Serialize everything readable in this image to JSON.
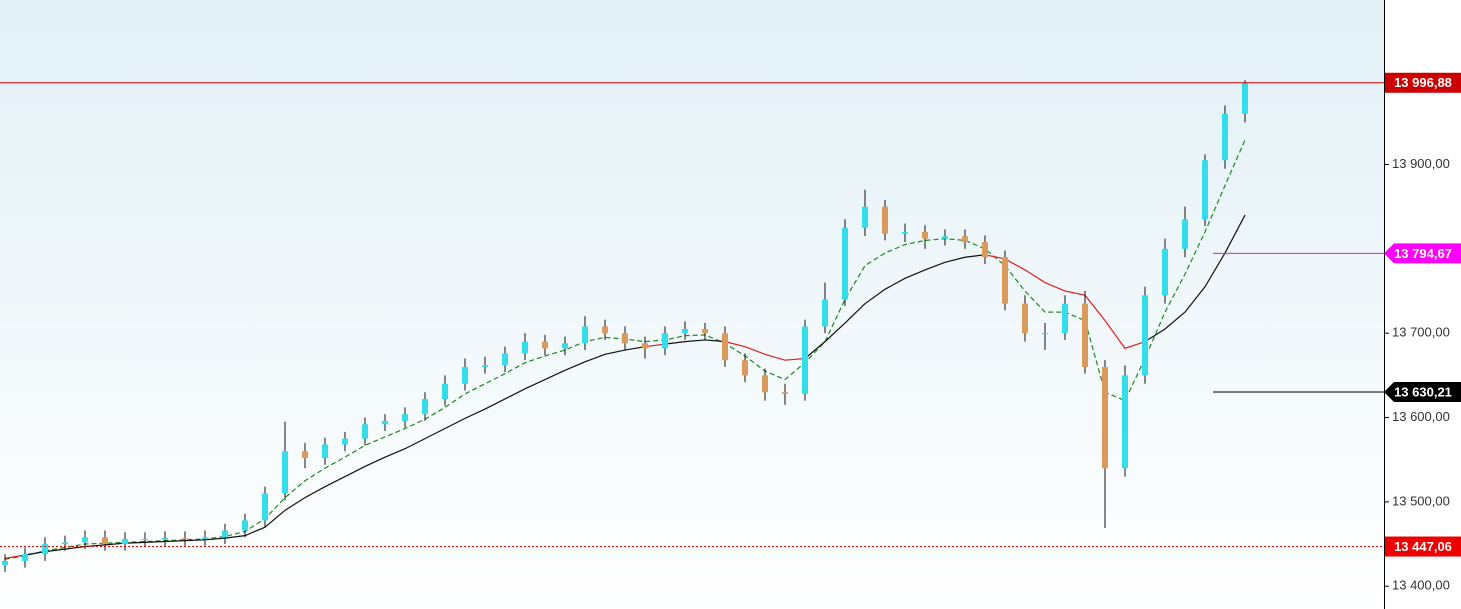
{
  "chart_data": {
    "type": "candlestick",
    "ylim": [
      13373,
      14095
    ],
    "yticks": [
      {
        "value": 13400,
        "label": "13 400,00"
      },
      {
        "value": 13500,
        "label": "13 500,00"
      },
      {
        "value": 13600,
        "label": "13 600,00"
      },
      {
        "value": 13700,
        "label": "13 700,00"
      },
      {
        "value": 13900,
        "label": "13 900,00"
      }
    ],
    "bull_color": "#33dde9",
    "bear_color": "#d99a5b",
    "wick_color": "#111111",
    "categories": [
      null,
      null,
      null,
      null,
      null,
      null,
      null,
      null,
      null,
      null,
      null,
      null,
      null,
      null,
      null,
      null,
      null,
      null,
      null,
      null,
      null,
      null,
      null,
      null,
      null,
      null,
      null,
      null,
      null,
      null,
      null,
      null,
      null,
      null,
      null,
      null,
      null,
      null,
      null,
      null,
      null,
      null,
      null,
      null,
      null,
      null,
      null,
      null,
      null,
      null,
      null,
      null,
      null,
      null,
      null,
      null,
      null,
      null,
      null,
      null,
      null,
      null,
      null
    ],
    "open": [
      13425,
      13430,
      13438,
      13450,
      13452,
      13458,
      13450,
      13456,
      13455,
      13457,
      13456,
      13458,
      13466,
      13478,
      13510,
      13560,
      13552,
      13568,
      13575,
      13592,
      13596,
      13604,
      13622,
      13640,
      13660,
      13662,
      13676,
      13690,
      13682,
      13688,
      13708,
      13700,
      13688,
      13682,
      13700,
      13705,
      13700,
      13668,
      13650,
      13630,
      13628,
      13708,
      13740,
      13825,
      13850,
      13818,
      13820,
      13812,
      13815,
      13808,
      13790,
      13735,
      13700,
      13700,
      13735,
      13660,
      13540,
      13650,
      13745,
      13800,
      13835,
      13905,
      13960
    ],
    "high": [
      13438,
      13446,
      13458,
      13460,
      13466,
      13466,
      13464,
      13464,
      13465,
      13465,
      13466,
      13474,
      13486,
      13518,
      13595,
      13570,
      13576,
      13583,
      13600,
      13604,
      13612,
      13630,
      13650,
      13670,
      13672,
      13684,
      13700,
      13698,
      13696,
      13720,
      13716,
      13708,
      13696,
      13708,
      13714,
      13712,
      13708,
      13676,
      13658,
      13640,
      13716,
      13760,
      13835,
      13870,
      13858,
      13830,
      13828,
      13823,
      13823,
      13816,
      13798,
      13745,
      13712,
      13745,
      13750,
      13668,
      13662,
      13755,
      13812,
      13850,
      13912,
      13970,
      14000
    ],
    "low": [
      13417,
      13422,
      13430,
      13442,
      13444,
      13442,
      13442,
      13447,
      13447,
      13448,
      13448,
      13450,
      13458,
      13470,
      13502,
      13540,
      13544,
      13560,
      13567,
      13584,
      13588,
      13596,
      13614,
      13632,
      13652,
      13654,
      13668,
      13674,
      13674,
      13680,
      13692,
      13680,
      13670,
      13674,
      13692,
      13692,
      13660,
      13642,
      13620,
      13615,
      13620,
      13700,
      13732,
      13815,
      13810,
      13808,
      13800,
      13804,
      13800,
      13782,
      13727,
      13690,
      13680,
      13692,
      13652,
      13469,
      13530,
      13640,
      13735,
      13790,
      13827,
      13895,
      13950
    ],
    "close": [
      13430,
      13438,
      13450,
      13452,
      13458,
      13450,
      13456,
      13455,
      13457,
      13456,
      13458,
      13466,
      13478,
      13510,
      13560,
      13552,
      13568,
      13575,
      13592,
      13596,
      13604,
      13622,
      13640,
      13660,
      13662,
      13676,
      13690,
      13682,
      13688,
      13708,
      13700,
      13688,
      13682,
      13700,
      13705,
      13700,
      13668,
      13650,
      13630,
      13628,
      13708,
      13740,
      13825,
      13850,
      13818,
      13820,
      13812,
      13815,
      13808,
      13790,
      13735,
      13700,
      13700,
      13735,
      13660,
      13540,
      13650,
      13745,
      13800,
      13835,
      13905,
      13960,
      13997
    ],
    "lines": [
      {
        "color": "#1a8a1a",
        "dash": true,
        "values": [
          13432,
          13436,
          13442,
          13446,
          13450,
          13451,
          13452,
          13453,
          13454,
          13455,
          13456,
          13459,
          13465,
          13480,
          13505,
          13525,
          13540,
          13553,
          13567,
          13577,
          13587,
          13598,
          13612,
          13628,
          13640,
          13652,
          13665,
          13673,
          13680,
          13690,
          13695,
          13693,
          13690,
          13692,
          13697,
          13698,
          13688,
          13673,
          13655,
          13645,
          13665,
          13690,
          13740,
          13780,
          13795,
          13805,
          13810,
          13812,
          13810,
          13800,
          13780,
          13750,
          13725,
          13725,
          13715,
          13630,
          13620,
          13670,
          13725,
          13770,
          13820,
          13875,
          13929
        ]
      },
      {
        "color": "#111111",
        "below_color": "#e02020",
        "dash": false,
        "values": [
          13433,
          13437,
          13441,
          13444,
          13447,
          13449,
          13451,
          13452,
          13453,
          13454,
          13455,
          13457,
          13460,
          13470,
          13490,
          13505,
          13518,
          13530,
          13542,
          13553,
          13563,
          13575,
          13587,
          13599,
          13610,
          13622,
          13634,
          13645,
          13656,
          13666,
          13675,
          13680,
          13684,
          13687,
          13690,
          13692,
          13690,
          13684,
          13675,
          13668,
          13670,
          13690,
          13712,
          13735,
          13752,
          13765,
          13775,
          13784,
          13790,
          13793,
          13788,
          13775,
          13760,
          13750,
          13745,
          13715,
          13682,
          13690,
          13705,
          13725,
          13755,
          13795,
          13840
        ]
      }
    ],
    "levels": [
      {
        "value": 13996.88,
        "label": "13 996,88",
        "color": "#cc0000",
        "style": "solid",
        "extent": "full",
        "shape": "box"
      },
      {
        "value": 13794.67,
        "label": "13 794,67",
        "color": "#ff00ff",
        "style": "solid",
        "extent": "short",
        "shape": "arrow"
      },
      {
        "value": 13630.21,
        "label": "13 630,21",
        "color": "#000000",
        "style": "solid",
        "extent": "short",
        "shape": "arrow"
      },
      {
        "value": 13447.06,
        "label": "13 447,06",
        "color": "#ee0000",
        "style": "dotted",
        "extent": "full",
        "shape": "box"
      }
    ]
  }
}
